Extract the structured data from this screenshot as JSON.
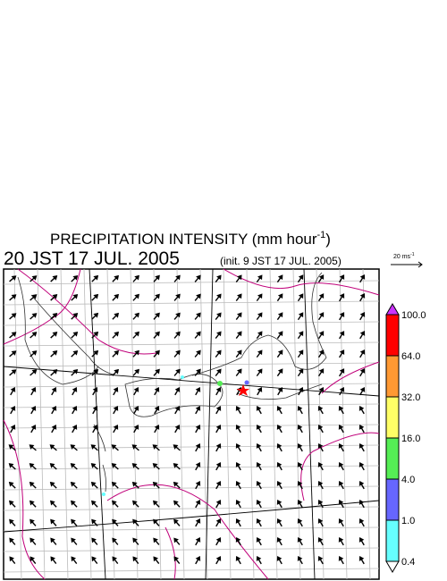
{
  "header": {
    "title": "PRECIPITATION INTENSITY (mm hour",
    "title_exponent": "-1",
    "title_close": ")",
    "time": "20 JST 17 JUL. 2005",
    "init": "(init. 9 JST 17 JUL. 2005)"
  },
  "wind_scale": {
    "label": "20 ms",
    "exponent": "-1"
  },
  "colorbar": {
    "labels": [
      "100.0",
      "64.0",
      "32.0",
      "16.0",
      "4.0",
      "1.0",
      "0.4"
    ],
    "over_color": "#cc33ff",
    "under_color": "#ffffff",
    "colors": [
      "#ff0000",
      "#ff9933",
      "#ffff66",
      "#55ee55",
      "#6666ff",
      "#66ffff"
    ]
  }
}
